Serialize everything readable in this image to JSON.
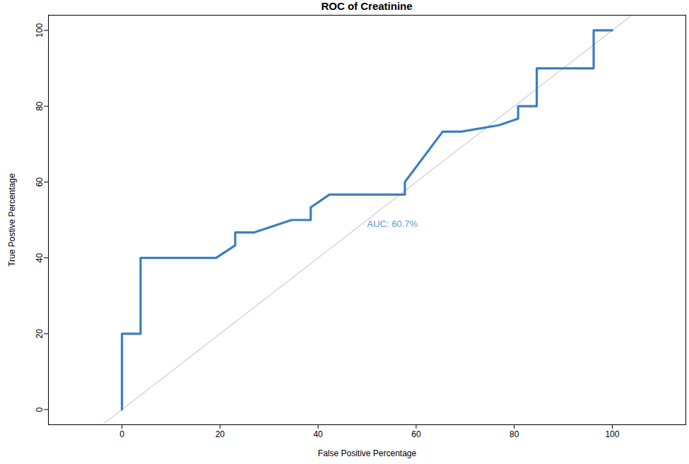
{
  "chart_data": {
    "type": "line",
    "title": "ROC of Creatinine",
    "x_label": "False Positive Percentage",
    "y_label": "True Postive Percentage",
    "x": [
      0,
      0,
      3.8,
      3.8,
      19.2,
      23.1,
      23.1,
      26.9,
      34.6,
      38.5,
      38.5,
      42.3,
      57.7,
      57.7,
      65.4,
      69.2,
      76.9,
      80.8,
      80.8,
      84.6,
      84.6,
      96.2,
      96.2,
      100
    ],
    "values": [
      0,
      20,
      20,
      40,
      40,
      43.3,
      46.7,
      46.7,
      50,
      50,
      53.3,
      56.7,
      56.7,
      60,
      73.3,
      73.3,
      75,
      76.7,
      80,
      80,
      90,
      90,
      100,
      100
    ],
    "color": "#3a7fc1",
    "xlim": [
      -15,
      115
    ],
    "ylim": [
      -4,
      104
    ],
    "xticks": [
      0,
      20,
      40,
      60,
      80,
      100
    ],
    "yticks": [
      0,
      20,
      40,
      60,
      80,
      100
    ],
    "grid": false,
    "annotations": [
      {
        "text": "AUC: 60.7%",
        "x": 50,
        "y": 49
      }
    ]
  }
}
